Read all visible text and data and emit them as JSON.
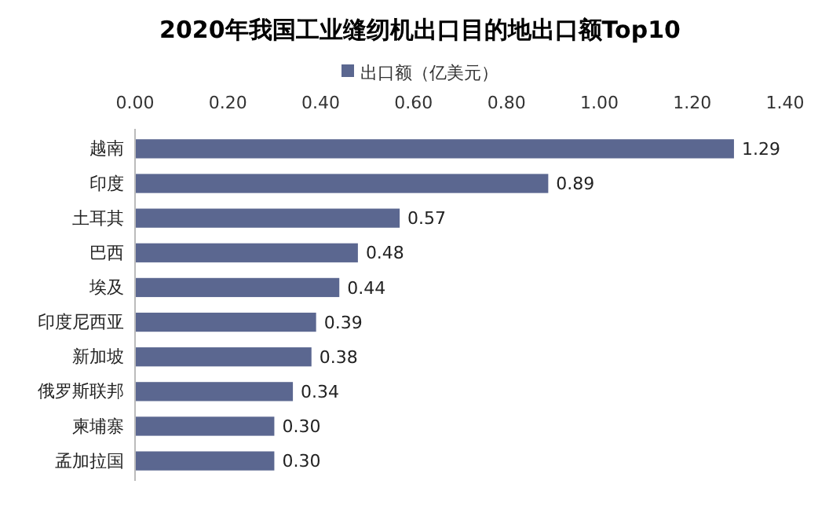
{
  "chart_data": {
    "type": "bar",
    "orientation": "horizontal",
    "title": "2020年我国工业缝纫机出口目的地出口额Top10",
    "categories": [
      "越南",
      "印度",
      "土耳其",
      "巴西",
      "埃及",
      "印度尼西亚",
      "新加坡",
      "俄罗斯联邦",
      "柬埔寨",
      "孟加拉国"
    ],
    "series": [
      {
        "name": "出口额（亿美元）",
        "color": "#5b6790",
        "values": [
          1.29,
          0.89,
          0.57,
          0.48,
          0.44,
          0.39,
          0.38,
          0.34,
          0.3,
          0.3
        ],
        "value_labels": [
          "1.29",
          "0.89",
          "0.57",
          "0.48",
          "0.44",
          "0.39",
          "0.38",
          "0.34",
          "0.30",
          "0.30"
        ]
      }
    ],
    "xlim": [
      0,
      1.4
    ],
    "xticks": [
      {
        "value": 0,
        "label": "0.00"
      },
      {
        "value": 0.2,
        "label": "0.20"
      },
      {
        "value": 0.4,
        "label": "0.40"
      },
      {
        "value": 0.6,
        "label": "0.60"
      },
      {
        "value": 0.8,
        "label": "0.80"
      },
      {
        "value": 1,
        "label": "1.00"
      },
      {
        "value": 1.2,
        "label": "1.20"
      },
      {
        "value": 1.4,
        "label": "1.40"
      }
    ],
    "legend": "top",
    "grid": false
  }
}
